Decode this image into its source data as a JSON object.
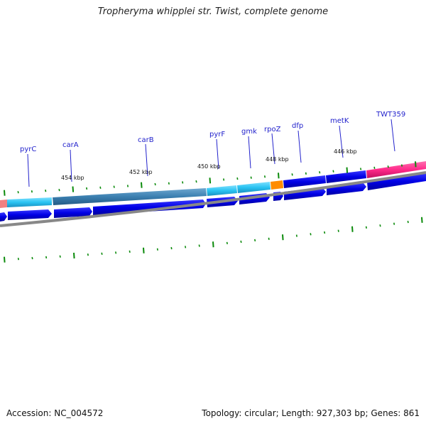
{
  "header": {
    "title": "Tropheryma whipplei str. Twist, complete genome"
  },
  "footer": {
    "accession": "Accession: NC_004572",
    "summary": "Topology: circular; Length: 927,303 bp; Genes: 861"
  },
  "map": {
    "gene_labels": [
      "pyrC",
      "carA",
      "carB",
      "pyrF",
      "gmk",
      "rpoZ",
      "dfp",
      "metK",
      "TWT359"
    ],
    "position_labels": [
      "454 kbp",
      "452 kbp",
      "450 kbp",
      "448 kbp",
      "446 kbp"
    ],
    "colors": {
      "forward_strand": "#0000e6",
      "reverse_strand": "#0000e6",
      "cog_light_blue": "#29c3f2",
      "cog_steel_blue": "#3b7fb0",
      "cog_orange": "#ff8c00",
      "cog_pink": "#ff2a8a",
      "cog_salmon": "#f08080",
      "backbone": "#888888",
      "tick": "#0a8a0a",
      "label": "#2222cc"
    }
  }
}
